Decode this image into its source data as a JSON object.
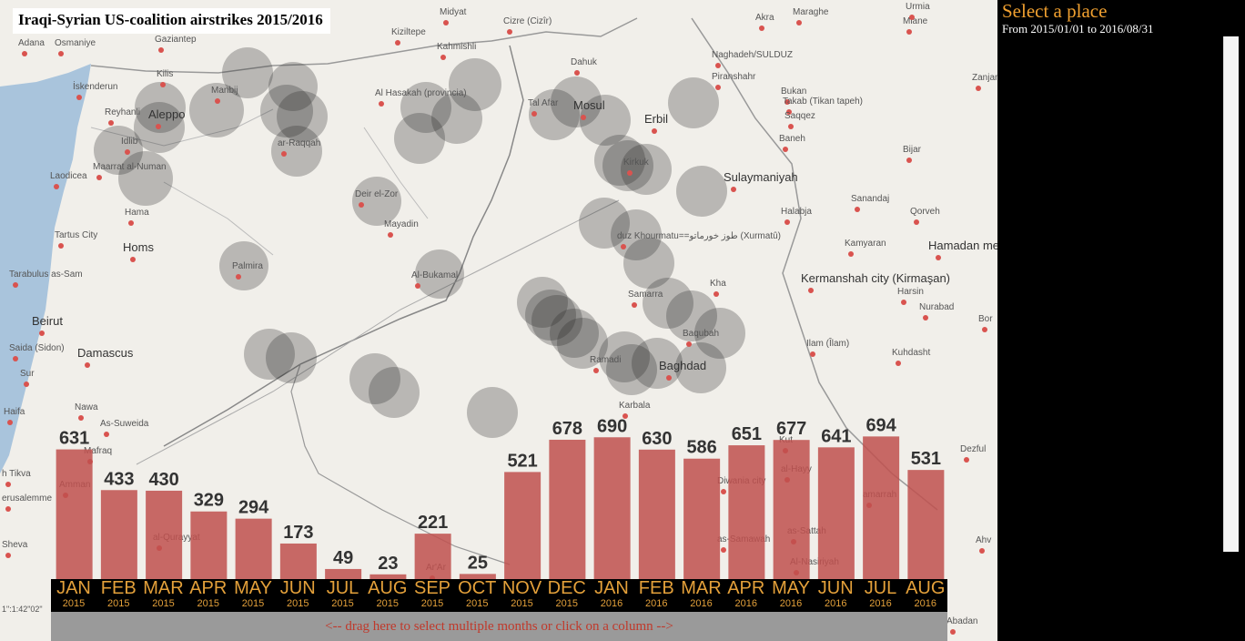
{
  "title": "Iraqi-Syrian US-coalition airstrikes 2015/2016",
  "panel": {
    "heading": "Select a place",
    "range": "From 2015/01/01 to 2016/08/31"
  },
  "drag_hint": "<-- drag here to select multiple months or click on a column -->",
  "scale_text": "1\":1:42\"02\"",
  "colors": {
    "bar": "#c0504d",
    "month_label": "#e3a03a",
    "panel_title": "#f0a030"
  },
  "map_labels": [
    {
      "name": "Adana",
      "big": false
    },
    {
      "name": "Osmaniye",
      "big": false
    },
    {
      "name": "Gaziantep",
      "big": false
    },
    {
      "name": "Kilis",
      "big": false
    },
    {
      "name": "İskenderun",
      "big": false
    },
    {
      "name": "Manbij",
      "big": false
    },
    {
      "name": "Reyhanli",
      "big": false
    },
    {
      "name": "Aleppo",
      "big": true
    },
    {
      "name": "Idlib",
      "big": false
    },
    {
      "name": "Maarrat al-Numan",
      "big": false
    },
    {
      "name": "Laodicea",
      "big": false
    },
    {
      "name": "Hama",
      "big": false
    },
    {
      "name": "Tartus City",
      "big": false
    },
    {
      "name": "Homs",
      "big": true
    },
    {
      "name": "Tarabulus as-Sam",
      "big": false
    },
    {
      "name": "Beirut",
      "big": true
    },
    {
      "name": "Saida (Sidon)",
      "big": false
    },
    {
      "name": "Damascus",
      "big": true
    },
    {
      "name": "Sur",
      "big": false
    },
    {
      "name": "Haifa",
      "big": false
    },
    {
      "name": "Nawa",
      "big": false
    },
    {
      "name": "As-Suweida",
      "big": false
    },
    {
      "name": "Mafraq",
      "big": false
    },
    {
      "name": "Amman",
      "big": false
    },
    {
      "name": "h Tikva",
      "big": false
    },
    {
      "name": "erusalemme",
      "big": false
    },
    {
      "name": "Sheva",
      "big": false
    },
    {
      "name": "Palmira",
      "big": false
    },
    {
      "name": "ar-Raqqah",
      "big": false
    },
    {
      "name": "Deir el-Zor",
      "big": false
    },
    {
      "name": "Mayadin",
      "big": false
    },
    {
      "name": "Al-Bukamal",
      "big": false
    },
    {
      "name": "Al Hasakah (provincia)",
      "big": false
    },
    {
      "name": "Kahmishli",
      "big": false
    },
    {
      "name": "Kiziltepe",
      "big": false
    },
    {
      "name": "Midyat",
      "big": false
    },
    {
      "name": "Cizre (Cizîr)",
      "big": false
    },
    {
      "name": "Dahuk",
      "big": false
    },
    {
      "name": "Tal Afar",
      "big": false
    },
    {
      "name": "Mosul",
      "big": true
    },
    {
      "name": "Erbil",
      "big": true
    },
    {
      "name": "Sulaymaniyah",
      "big": true
    },
    {
      "name": "Kirkuk",
      "big": false
    },
    {
      "name": "duz Khourmatu==طوز خورماتو (Xurmatû)",
      "big": false
    },
    {
      "name": "Samarra",
      "big": false
    },
    {
      "name": "Baqubah",
      "big": false
    },
    {
      "name": "Ramadi",
      "big": false
    },
    {
      "name": "Baghdad",
      "big": true
    },
    {
      "name": "Karbala",
      "big": false
    },
    {
      "name": "Kut",
      "big": false
    },
    {
      "name": "Diwania city",
      "big": false
    },
    {
      "name": "al-Hayy",
      "big": false
    },
    {
      "name": "amarrah",
      "big": false
    },
    {
      "name": "as-Samawah",
      "big": false
    },
    {
      "name": "as-Sattah",
      "big": false
    },
    {
      "name": "Al-Nasiriyah",
      "big": false
    },
    {
      "name": "al-Qurayyat",
      "big": false
    },
    {
      "name": "Ar'Ar",
      "big": false
    },
    {
      "name": "Kha",
      "big": false
    },
    {
      "name": "Maraghe",
      "big": false
    },
    {
      "name": "Miane",
      "big": false
    },
    {
      "name": "Naghadeh/SULDUZ",
      "big": false
    },
    {
      "name": "Piranshahr",
      "big": false
    },
    {
      "name": "Bukan",
      "big": false
    },
    {
      "name": "Takab (Tikan tapeh)",
      "big": false
    },
    {
      "name": "Saqqez",
      "big": false
    },
    {
      "name": "Baneh",
      "big": false
    },
    {
      "name": "Bijar",
      "big": false
    },
    {
      "name": "Zanjan",
      "big": false
    },
    {
      "name": "Sanandaj",
      "big": false
    },
    {
      "name": "Qorveh",
      "big": false
    },
    {
      "name": "Halabja",
      "big": false
    },
    {
      "name": "Kamyaran",
      "big": false
    },
    {
      "name": "Hamadan me",
      "big": true
    },
    {
      "name": "Kermanshah city (Kirmaşan)",
      "big": true
    },
    {
      "name": "Harsin",
      "big": false
    },
    {
      "name": "Nurabad",
      "big": false
    },
    {
      "name": "Bor",
      "big": false
    },
    {
      "name": "Ilam (Îlam)",
      "big": false
    },
    {
      "name": "Kuhdasht",
      "big": false
    },
    {
      "name": "Dezful",
      "big": false
    },
    {
      "name": "Ahv",
      "big": false
    },
    {
      "name": "Abadan",
      "big": false
    },
    {
      "name": "Akra",
      "big": false
    },
    {
      "name": "Urmia",
      "big": false
    }
  ],
  "chart_data": {
    "type": "bar",
    "title": "",
    "xlabel": "",
    "ylabel": "",
    "ylim": [
      0,
      760
    ],
    "categories": [
      {
        "month": "JAN",
        "year": "2015"
      },
      {
        "month": "FEB",
        "year": "2015"
      },
      {
        "month": "MAR",
        "year": "2015"
      },
      {
        "month": "APR",
        "year": "2015"
      },
      {
        "month": "MAY",
        "year": "2015"
      },
      {
        "month": "JUN",
        "year": "2015"
      },
      {
        "month": "JUL",
        "year": "2015"
      },
      {
        "month": "AUG",
        "year": "2015"
      },
      {
        "month": "SEP",
        "year": "2015"
      },
      {
        "month": "OCT",
        "year": "2015"
      },
      {
        "month": "NOV",
        "year": "2015"
      },
      {
        "month": "DEC",
        "year": "2015"
      },
      {
        "month": "JAN",
        "year": "2016"
      },
      {
        "month": "FEB",
        "year": "2016"
      },
      {
        "month": "MAR",
        "year": "2016"
      },
      {
        "month": "APR",
        "year": "2016"
      },
      {
        "month": "MAY",
        "year": "2016"
      },
      {
        "month": "JUN",
        "year": "2016"
      },
      {
        "month": "JUL",
        "year": "2016"
      },
      {
        "month": "AUG",
        "year": "2016"
      }
    ],
    "values": [
      631,
      433,
      430,
      329,
      294,
      173,
      49,
      23,
      221,
      25,
      521,
      678,
      690,
      630,
      586,
      651,
      677,
      641,
      694,
      531
    ]
  }
}
